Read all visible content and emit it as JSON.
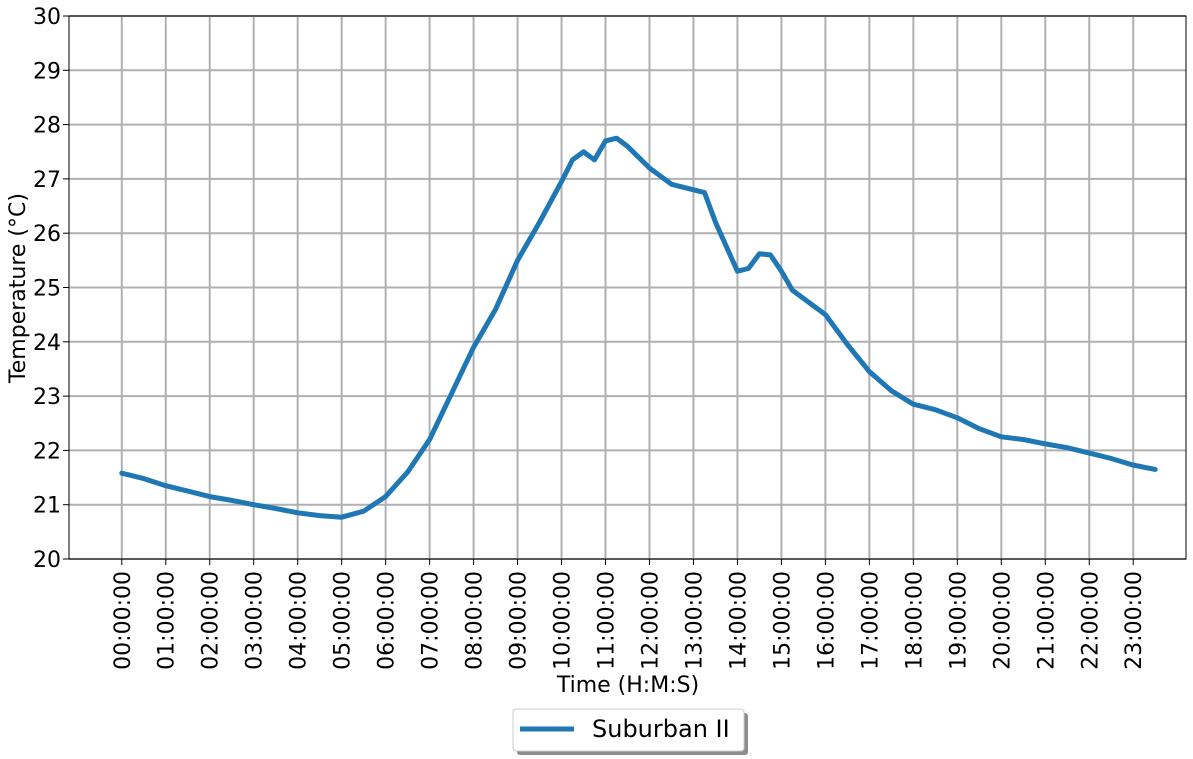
{
  "chart_data": {
    "type": "line",
    "title": "",
    "xlabel": "Time (H:M:S)",
    "ylabel": "Temperature (°C)",
    "ylim": [
      20,
      30
    ],
    "xlim_hours": [
      -1.2,
      24.2
    ],
    "y_ticks": [
      20,
      21,
      22,
      23,
      24,
      25,
      26,
      27,
      28,
      29,
      30
    ],
    "x_ticks": [
      "00:00:00",
      "01:00:00",
      "02:00:00",
      "03:00:00",
      "04:00:00",
      "05:00:00",
      "06:00:00",
      "07:00:00",
      "08:00:00",
      "09:00:00",
      "10:00:00",
      "11:00:00",
      "12:00:00",
      "13:00:00",
      "14:00:00",
      "15:00:00",
      "16:00:00",
      "17:00:00",
      "18:00:00",
      "19:00:00",
      "20:00:00",
      "21:00:00",
      "22:00:00",
      "23:00:00"
    ],
    "grid": true,
    "legend_position": "bottom-center",
    "series": [
      {
        "name": "Suburban II",
        "color": "#1f77b4",
        "x": [
          "00:00:00",
          "00:30:00",
          "01:00:00",
          "01:30:00",
          "02:00:00",
          "02:30:00",
          "03:00:00",
          "03:30:00",
          "04:00:00",
          "04:30:00",
          "05:00:00",
          "05:30:00",
          "06:00:00",
          "06:30:00",
          "07:00:00",
          "07:30:00",
          "08:00:00",
          "08:30:00",
          "09:00:00",
          "09:30:00",
          "10:00:00",
          "10:15:00",
          "10:30:00",
          "10:45:00",
          "11:00:00",
          "11:15:00",
          "11:30:00",
          "12:00:00",
          "12:30:00",
          "13:00:00",
          "13:15:00",
          "13:30:00",
          "14:00:00",
          "14:15:00",
          "14:30:00",
          "14:45:00",
          "15:00:00",
          "15:15:00",
          "15:30:00",
          "16:00:00",
          "16:30:00",
          "17:00:00",
          "17:30:00",
          "18:00:00",
          "18:30:00",
          "19:00:00",
          "19:30:00",
          "20:00:00",
          "20:30:00",
          "21:00:00",
          "21:30:00",
          "22:00:00",
          "22:30:00",
          "23:00:00",
          "23:30:00"
        ],
        "y": [
          21.58,
          21.48,
          21.35,
          21.25,
          21.15,
          21.08,
          21.0,
          20.93,
          20.85,
          20.8,
          20.77,
          20.88,
          21.15,
          21.6,
          22.2,
          23.05,
          23.9,
          24.6,
          25.5,
          26.2,
          26.95,
          27.35,
          27.5,
          27.35,
          27.7,
          27.75,
          27.6,
          27.2,
          26.9,
          26.8,
          26.75,
          26.2,
          25.3,
          25.35,
          25.62,
          25.6,
          25.3,
          24.95,
          24.8,
          24.5,
          23.95,
          23.45,
          23.1,
          22.85,
          22.75,
          22.6,
          22.4,
          22.25,
          22.2,
          22.12,
          22.05,
          21.95,
          21.85,
          21.73,
          21.65
        ]
      }
    ]
  }
}
